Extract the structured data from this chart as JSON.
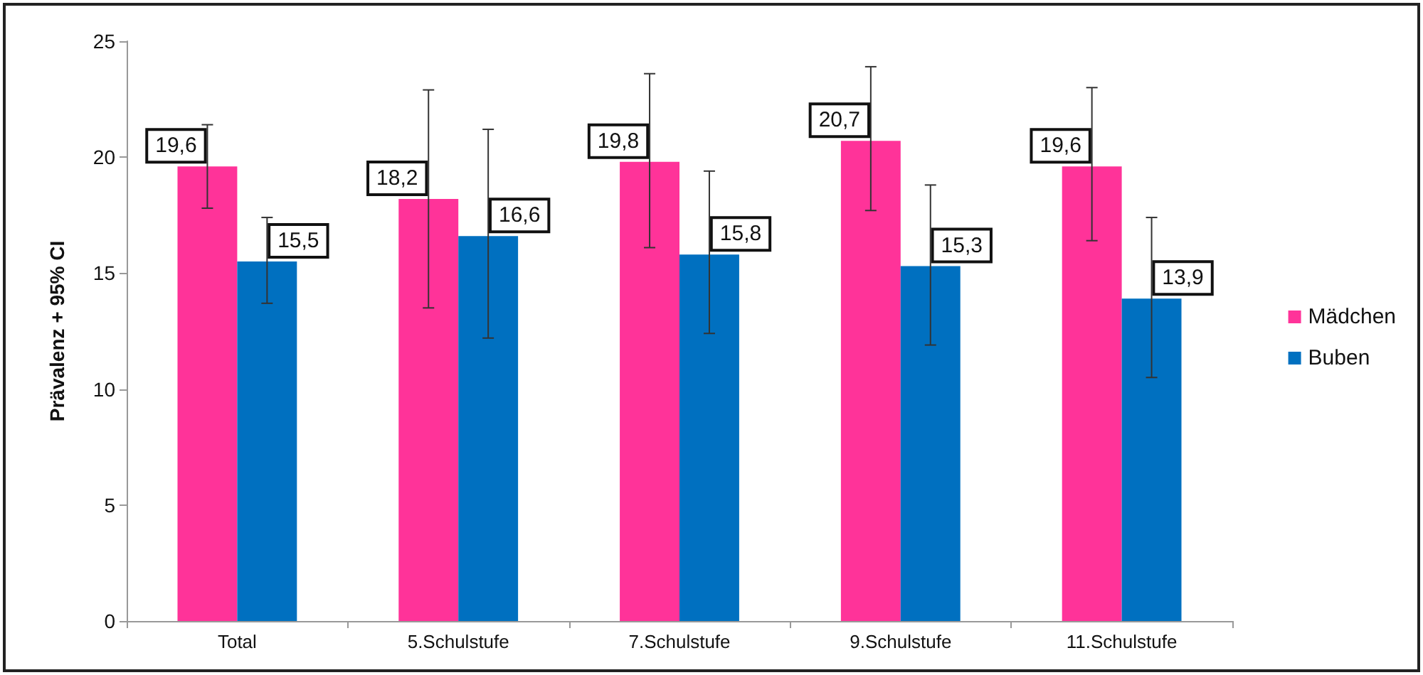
{
  "chart_data": {
    "type": "bar",
    "ylabel": "Prävalenz + 95% CI",
    "categories": [
      "Total",
      "5.Schulstufe",
      "7.Schulstufe",
      "9.Schulstufe",
      "11.Schulstufe"
    ],
    "series": [
      {
        "name": "Mädchen",
        "color": "#ff3399",
        "values": [
          19.6,
          18.2,
          19.8,
          20.7,
          19.6
        ],
        "errors": [
          [
            17.8,
            21.4
          ],
          [
            13.5,
            22.9
          ],
          [
            16.1,
            23.6
          ],
          [
            17.7,
            23.9
          ],
          [
            16.4,
            23.0
          ]
        ],
        "value_labels": [
          "19,6",
          "18,2",
          "19,8",
          "20,7",
          "19,6"
        ]
      },
      {
        "name": "Buben",
        "color": "#0070c0",
        "values": [
          15.5,
          16.6,
          15.8,
          15.3,
          13.9
        ],
        "errors": [
          [
            13.7,
            17.4
          ],
          [
            12.2,
            21.2
          ],
          [
            12.4,
            19.4
          ],
          [
            11.9,
            18.8
          ],
          [
            10.5,
            17.4
          ]
        ],
        "value_labels": [
          "15,5",
          "16,6",
          "15,8",
          "15,3",
          "13,9"
        ]
      }
    ],
    "ylim": [
      0,
      25
    ],
    "yticks": [
      0,
      5,
      10,
      15,
      20,
      25
    ],
    "grid": false,
    "legend": "right"
  }
}
